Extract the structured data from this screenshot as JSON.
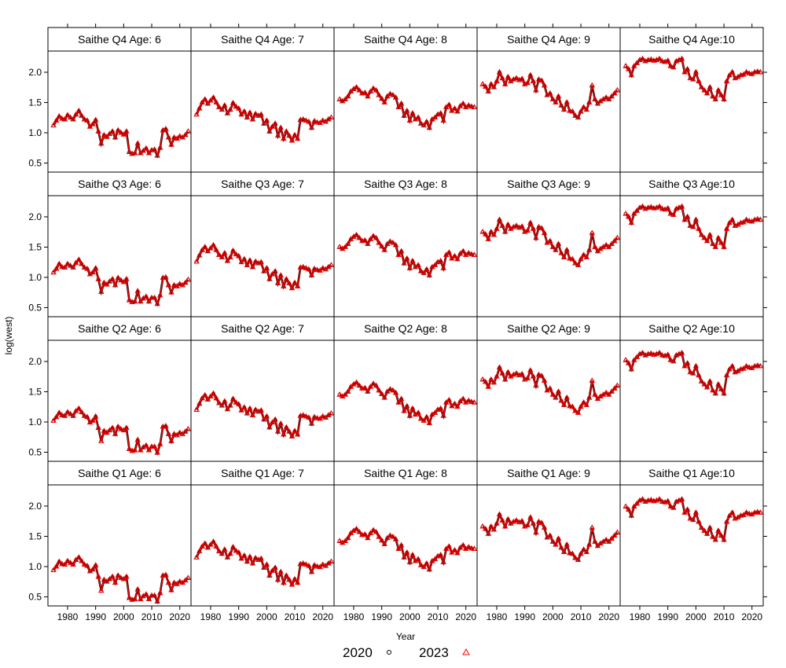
{
  "chart_data": {
    "type": "line",
    "xlabel": "Year",
    "ylabel": "log(west)",
    "xlim": [
      1973,
      2024
    ],
    "ylim": [
      0.35,
      2.35
    ],
    "x_ticks": [
      "1980",
      "1990",
      "2000",
      "2010",
      "2020"
    ],
    "y_ticks": [
      "0.5",
      "1.0",
      "1.5",
      "2.0"
    ],
    "legend": {
      "placement": "bottom-center",
      "entries": [
        {
          "name": "2020",
          "symbol": "circle",
          "color": "#000000"
        },
        {
          "name": "2023",
          "symbol": "triangle",
          "color": "#ff0000"
        }
      ]
    },
    "series_colors": {
      "2020": "#000000",
      "2023": "#ff0000"
    },
    "years_note": "1975-2023",
    "panel_order_top_to_bottom": [
      "Q4",
      "Q3",
      "Q2",
      "Q1"
    ],
    "panels": [
      {
        "title": "Saithe Q4 Age: 6",
        "quarter": "Q4",
        "age": 6,
        "values": [
          1.12,
          1.2,
          1.27,
          1.23,
          1.22,
          1.29,
          1.25,
          1.22,
          1.3,
          1.36,
          1.28,
          1.22,
          1.2,
          1.1,
          1.14,
          1.21,
          1.02,
          0.82,
          0.96,
          0.93,
          0.98,
          1.02,
          0.92,
          1.04,
          1.0,
          0.97,
          1.02,
          0.68,
          0.65,
          0.66,
          0.82,
          0.66,
          0.7,
          0.74,
          0.66,
          0.71,
          0.72,
          0.62,
          0.75,
          1.04,
          1.06,
          0.92,
          0.8,
          0.92,
          0.9,
          0.94,
          0.92,
          0.96,
          1.02
        ]
      },
      {
        "title": "Saithe Q4 Age: 7",
        "quarter": "Q4",
        "age": 7,
        "values": [
          1.3,
          1.4,
          1.5,
          1.55,
          1.48,
          1.53,
          1.58,
          1.5,
          1.42,
          1.38,
          1.45,
          1.32,
          1.38,
          1.49,
          1.43,
          1.4,
          1.3,
          1.35,
          1.25,
          1.33,
          1.22,
          1.31,
          1.28,
          1.3,
          1.15,
          1.2,
          1.02,
          1.1,
          1.15,
          0.95,
          1.08,
          0.9,
          1.02,
          0.95,
          0.87,
          0.96,
          0.9,
          1.21,
          1.22,
          1.2,
          1.18,
          1.08,
          1.19,
          1.17,
          1.16,
          1.2,
          1.18,
          1.22,
          1.25
        ]
      },
      {
        "title": "Saithe Q4 Age: 8",
        "quarter": "Q4",
        "age": 8,
        "values": [
          1.55,
          1.52,
          1.55,
          1.6,
          1.68,
          1.72,
          1.75,
          1.7,
          1.65,
          1.66,
          1.6,
          1.68,
          1.73,
          1.7,
          1.62,
          1.56,
          1.5,
          1.6,
          1.64,
          1.62,
          1.58,
          1.42,
          1.48,
          1.28,
          1.36,
          1.2,
          1.32,
          1.22,
          1.25,
          1.15,
          1.12,
          1.18,
          1.08,
          1.22,
          1.25,
          1.3,
          1.32,
          1.2,
          1.42,
          1.46,
          1.36,
          1.4,
          1.35,
          1.44,
          1.48,
          1.42,
          1.45,
          1.43,
          1.42
        ]
      },
      {
        "title": "Saithe Q4 Age: 9",
        "quarter": "Q4",
        "age": 9,
        "values": [
          1.8,
          1.76,
          1.68,
          1.8,
          1.75,
          1.85,
          2.0,
          1.9,
          1.8,
          1.92,
          1.85,
          1.88,
          1.9,
          1.87,
          1.89,
          1.8,
          1.82,
          1.95,
          1.85,
          1.7,
          1.88,
          1.86,
          1.78,
          1.62,
          1.65,
          1.55,
          1.5,
          1.6,
          1.45,
          1.38,
          1.5,
          1.36,
          1.35,
          1.28,
          1.25,
          1.35,
          1.42,
          1.38,
          1.5,
          1.78,
          1.55,
          1.48,
          1.52,
          1.55,
          1.58,
          1.55,
          1.6,
          1.65,
          1.7
        ]
      },
      {
        "title": "Saithe Q4 Age:10",
        "quarter": "Q4",
        "age": 10,
        "values": [
          2.1,
          2.05,
          1.95,
          2.1,
          2.15,
          2.2,
          2.22,
          2.18,
          2.2,
          2.21,
          2.19,
          2.2,
          2.22,
          2.18,
          2.17,
          2.19,
          2.1,
          2.08,
          2.18,
          2.2,
          2.22,
          2.0,
          2.05,
          1.9,
          1.88,
          2.0,
          1.85,
          1.75,
          1.7,
          1.65,
          1.75,
          1.6,
          1.55,
          1.7,
          1.62,
          1.55,
          1.85,
          1.95,
          2.0,
          1.9,
          1.92,
          1.95,
          1.96,
          2.0,
          1.98,
          1.97,
          2.0,
          2.01,
          2.0
        ]
      },
      {
        "title": "Saithe Q3 Age: 6",
        "quarter": "Q3",
        "age": 6,
        "values": [
          1.08,
          1.14,
          1.22,
          1.17,
          1.16,
          1.22,
          1.19,
          1.16,
          1.24,
          1.29,
          1.22,
          1.16,
          1.14,
          1.05,
          1.08,
          1.15,
          0.97,
          0.76,
          0.91,
          0.88,
          0.93,
          0.97,
          0.87,
          0.99,
          0.95,
          0.92,
          0.97,
          0.62,
          0.59,
          0.6,
          0.77,
          0.6,
          0.65,
          0.68,
          0.6,
          0.66,
          0.66,
          0.56,
          0.7,
          0.99,
          1.0,
          0.87,
          0.75,
          0.87,
          0.85,
          0.89,
          0.87,
          0.91,
          0.96
        ]
      },
      {
        "title": "Saithe Q3 Age: 7",
        "quarter": "Q3",
        "age": 7,
        "values": [
          1.26,
          1.36,
          1.45,
          1.5,
          1.43,
          1.48,
          1.53,
          1.45,
          1.37,
          1.33,
          1.4,
          1.27,
          1.33,
          1.44,
          1.38,
          1.35,
          1.25,
          1.3,
          1.2,
          1.28,
          1.17,
          1.26,
          1.23,
          1.25,
          1.1,
          1.15,
          0.97,
          1.05,
          1.1,
          0.9,
          1.03,
          0.85,
          0.97,
          0.9,
          0.82,
          0.91,
          0.85,
          1.16,
          1.17,
          1.15,
          1.13,
          1.03,
          1.14,
          1.12,
          1.11,
          1.15,
          1.13,
          1.17,
          1.2
        ]
      },
      {
        "title": "Saithe Q3 Age: 8",
        "quarter": "Q3",
        "age": 8,
        "values": [
          1.5,
          1.47,
          1.5,
          1.55,
          1.63,
          1.67,
          1.7,
          1.65,
          1.6,
          1.61,
          1.55,
          1.63,
          1.68,
          1.65,
          1.57,
          1.51,
          1.45,
          1.55,
          1.59,
          1.57,
          1.53,
          1.37,
          1.43,
          1.23,
          1.31,
          1.15,
          1.27,
          1.17,
          1.2,
          1.1,
          1.07,
          1.13,
          1.03,
          1.17,
          1.2,
          1.25,
          1.27,
          1.15,
          1.37,
          1.41,
          1.31,
          1.35,
          1.3,
          1.39,
          1.43,
          1.37,
          1.4,
          1.38,
          1.37
        ]
      },
      {
        "title": "Saithe Q3 Age: 9",
        "quarter": "Q3",
        "age": 9,
        "values": [
          1.75,
          1.71,
          1.63,
          1.75,
          1.7,
          1.8,
          1.95,
          1.85,
          1.75,
          1.87,
          1.8,
          1.83,
          1.85,
          1.82,
          1.84,
          1.75,
          1.77,
          1.9,
          1.8,
          1.65,
          1.83,
          1.81,
          1.73,
          1.57,
          1.6,
          1.5,
          1.45,
          1.55,
          1.4,
          1.33,
          1.45,
          1.31,
          1.3,
          1.23,
          1.2,
          1.3,
          1.37,
          1.33,
          1.45,
          1.73,
          1.5,
          1.43,
          1.47,
          1.5,
          1.53,
          1.5,
          1.55,
          1.6,
          1.65
        ]
      },
      {
        "title": "Saithe Q3 Age:10",
        "quarter": "Q3",
        "age": 10,
        "values": [
          2.05,
          2.0,
          1.9,
          2.05,
          2.1,
          2.15,
          2.17,
          2.13,
          2.15,
          2.16,
          2.14,
          2.15,
          2.17,
          2.13,
          2.12,
          2.14,
          2.05,
          2.03,
          2.13,
          2.15,
          2.17,
          1.95,
          2.0,
          1.85,
          1.83,
          1.95,
          1.8,
          1.7,
          1.65,
          1.6,
          1.7,
          1.55,
          1.5,
          1.65,
          1.57,
          1.5,
          1.8,
          1.9,
          1.95,
          1.85,
          1.87,
          1.9,
          1.91,
          1.95,
          1.93,
          1.92,
          1.95,
          1.96,
          1.95
        ]
      },
      {
        "title": "Saithe Q2 Age: 6",
        "quarter": "Q2",
        "age": 6,
        "values": [
          1.02,
          1.08,
          1.15,
          1.11,
          1.1,
          1.16,
          1.13,
          1.1,
          1.18,
          1.22,
          1.16,
          1.1,
          1.08,
          0.99,
          1.02,
          1.09,
          0.9,
          0.68,
          0.85,
          0.82,
          0.86,
          0.9,
          0.8,
          0.92,
          0.88,
          0.86,
          0.9,
          0.55,
          0.52,
          0.53,
          0.7,
          0.53,
          0.58,
          0.61,
          0.53,
          0.59,
          0.59,
          0.49,
          0.63,
          0.92,
          0.93,
          0.8,
          0.68,
          0.8,
          0.78,
          0.82,
          0.8,
          0.84,
          0.88
        ]
      },
      {
        "title": "Saithe Q2 Age: 7",
        "quarter": "Q2",
        "age": 7,
        "values": [
          1.2,
          1.3,
          1.39,
          1.44,
          1.37,
          1.42,
          1.47,
          1.39,
          1.31,
          1.27,
          1.34,
          1.21,
          1.27,
          1.38,
          1.32,
          1.29,
          1.19,
          1.24,
          1.14,
          1.22,
          1.11,
          1.2,
          1.17,
          1.19,
          1.04,
          1.09,
          0.91,
          0.99,
          1.04,
          0.84,
          0.97,
          0.79,
          0.91,
          0.84,
          0.76,
          0.85,
          0.79,
          1.1,
          1.11,
          1.09,
          1.07,
          0.97,
          1.08,
          1.06,
          1.05,
          1.09,
          1.07,
          1.11,
          1.14
        ]
      },
      {
        "title": "Saithe Q2 Age: 8",
        "quarter": "Q2",
        "age": 8,
        "values": [
          1.45,
          1.42,
          1.45,
          1.5,
          1.58,
          1.62,
          1.65,
          1.6,
          1.55,
          1.56,
          1.5,
          1.58,
          1.63,
          1.6,
          1.52,
          1.46,
          1.4,
          1.5,
          1.54,
          1.52,
          1.48,
          1.32,
          1.38,
          1.18,
          1.26,
          1.1,
          1.22,
          1.12,
          1.15,
          1.05,
          1.02,
          1.08,
          0.98,
          1.12,
          1.15,
          1.2,
          1.22,
          1.1,
          1.32,
          1.36,
          1.26,
          1.3,
          1.25,
          1.34,
          1.38,
          1.32,
          1.35,
          1.33,
          1.32
        ]
      },
      {
        "title": "Saithe Q2 Age: 9",
        "quarter": "Q2",
        "age": 9,
        "values": [
          1.7,
          1.66,
          1.58,
          1.7,
          1.65,
          1.75,
          1.9,
          1.8,
          1.7,
          1.82,
          1.75,
          1.78,
          1.8,
          1.77,
          1.79,
          1.7,
          1.72,
          1.85,
          1.75,
          1.6,
          1.78,
          1.76,
          1.68,
          1.52,
          1.55,
          1.45,
          1.4,
          1.5,
          1.35,
          1.28,
          1.4,
          1.26,
          1.25,
          1.18,
          1.15,
          1.25,
          1.32,
          1.28,
          1.4,
          1.68,
          1.45,
          1.38,
          1.42,
          1.45,
          1.48,
          1.45,
          1.5,
          1.55,
          1.6
        ]
      },
      {
        "title": "Saithe Q2 Age:10",
        "quarter": "Q2",
        "age": 10,
        "values": [
          2.02,
          1.97,
          1.87,
          2.02,
          2.07,
          2.12,
          2.14,
          2.1,
          2.12,
          2.13,
          2.11,
          2.12,
          2.14,
          2.1,
          2.09,
          2.11,
          2.02,
          2.0,
          2.1,
          2.12,
          2.14,
          1.92,
          1.97,
          1.82,
          1.8,
          1.92,
          1.77,
          1.67,
          1.62,
          1.57,
          1.67,
          1.52,
          1.47,
          1.62,
          1.54,
          1.47,
          1.77,
          1.87,
          1.92,
          1.82,
          1.84,
          1.87,
          1.88,
          1.92,
          1.9,
          1.89,
          1.92,
          1.93,
          1.92
        ]
      },
      {
        "title": "Saithe Q1 Age: 6",
        "quarter": "Q1",
        "age": 6,
        "values": [
          0.94,
          1.0,
          1.08,
          1.04,
          1.03,
          1.09,
          1.06,
          1.03,
          1.11,
          1.15,
          1.09,
          1.03,
          1.01,
          0.92,
          0.95,
          1.02,
          0.83,
          0.6,
          0.78,
          0.75,
          0.79,
          0.83,
          0.73,
          0.85,
          0.81,
          0.79,
          0.83,
          0.48,
          0.45,
          0.46,
          0.62,
          0.46,
          0.51,
          0.54,
          0.46,
          0.52,
          0.52,
          0.42,
          0.56,
          0.85,
          0.86,
          0.73,
          0.61,
          0.73,
          0.71,
          0.75,
          0.73,
          0.77,
          0.81
        ]
      },
      {
        "title": "Saithe Q1 Age: 7",
        "quarter": "Q1",
        "age": 7,
        "values": [
          1.15,
          1.25,
          1.33,
          1.38,
          1.31,
          1.36,
          1.41,
          1.33,
          1.25,
          1.21,
          1.28,
          1.15,
          1.21,
          1.32,
          1.26,
          1.23,
          1.13,
          1.18,
          1.08,
          1.16,
          1.05,
          1.14,
          1.11,
          1.13,
          0.98,
          1.03,
          0.85,
          0.93,
          0.98,
          0.78,
          0.91,
          0.73,
          0.85,
          0.78,
          0.7,
          0.79,
          0.73,
          1.04,
          1.05,
          1.03,
          1.01,
          0.91,
          1.02,
          1.0,
          0.99,
          1.03,
          1.01,
          1.05,
          1.08
        ]
      },
      {
        "title": "Saithe Q1 Age: 8",
        "quarter": "Q1",
        "age": 8,
        "values": [
          1.42,
          1.39,
          1.42,
          1.47,
          1.55,
          1.59,
          1.62,
          1.57,
          1.52,
          1.53,
          1.47,
          1.55,
          1.6,
          1.57,
          1.49,
          1.43,
          1.37,
          1.47,
          1.51,
          1.49,
          1.45,
          1.29,
          1.35,
          1.15,
          1.23,
          1.07,
          1.19,
          1.09,
          1.12,
          1.02,
          0.99,
          1.05,
          0.95,
          1.09,
          1.12,
          1.17,
          1.19,
          1.07,
          1.29,
          1.33,
          1.23,
          1.27,
          1.22,
          1.31,
          1.35,
          1.29,
          1.32,
          1.3,
          1.29
        ]
      },
      {
        "title": "Saithe Q1 Age: 9",
        "quarter": "Q1",
        "age": 9,
        "values": [
          1.66,
          1.62,
          1.54,
          1.66,
          1.61,
          1.71,
          1.86,
          1.76,
          1.66,
          1.78,
          1.71,
          1.74,
          1.76,
          1.73,
          1.75,
          1.66,
          1.68,
          1.81,
          1.71,
          1.56,
          1.74,
          1.72,
          1.64,
          1.48,
          1.51,
          1.41,
          1.36,
          1.46,
          1.31,
          1.24,
          1.36,
          1.22,
          1.21,
          1.14,
          1.11,
          1.21,
          1.28,
          1.24,
          1.36,
          1.64,
          1.41,
          1.34,
          1.38,
          1.41,
          1.44,
          1.41,
          1.46,
          1.51,
          1.56
        ]
      },
      {
        "title": "Saithe Q1 Age:10",
        "quarter": "Q1",
        "age": 10,
        "values": [
          1.99,
          1.94,
          1.84,
          1.99,
          2.04,
          2.09,
          2.11,
          2.07,
          2.09,
          2.1,
          2.08,
          2.09,
          2.11,
          2.07,
          2.06,
          2.08,
          1.99,
          1.97,
          2.07,
          2.09,
          2.11,
          1.89,
          1.94,
          1.79,
          1.77,
          1.89,
          1.74,
          1.64,
          1.59,
          1.54,
          1.64,
          1.49,
          1.44,
          1.59,
          1.51,
          1.44,
          1.74,
          1.84,
          1.89,
          1.79,
          1.81,
          1.84,
          1.85,
          1.89,
          1.87,
          1.86,
          1.89,
          1.9,
          1.89
        ]
      }
    ]
  }
}
